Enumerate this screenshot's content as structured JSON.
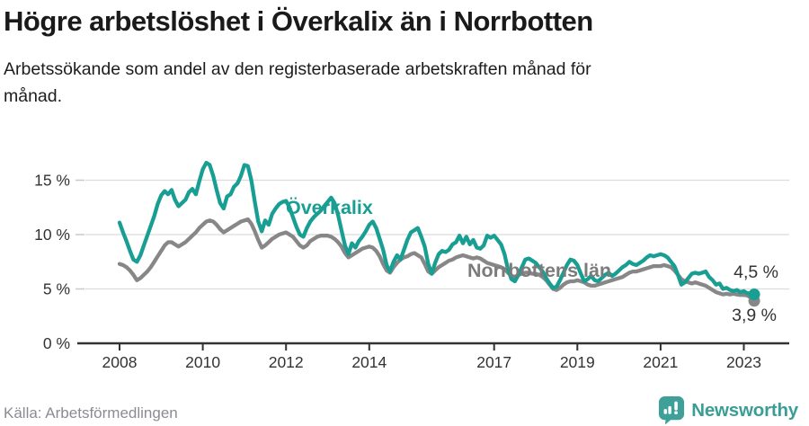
{
  "header": {
    "title": "Högre arbetslöshet i Överkalix än i Norrbotten",
    "subtitle": "Arbetssökande som andel av den registerbaserade arbetskraften månad för månad.",
    "subtitle_lines": [
      "Arbetssökande som andel av den registerbaserade arbetskraften månad för",
      "månad."
    ]
  },
  "footer": {
    "source": "Källa: Arbetsförmedlingen",
    "brand": "Newsworthy"
  },
  "colors": {
    "overkalix": "#199e93",
    "norrbotten": "#878787",
    "norrbotten_label": "#7b7b7b",
    "axis": "#333333",
    "grid": "#dcdcdc",
    "tick_minor": "#c9c9c9",
    "brand_teal": "#3fa099",
    "annotation": "#333333"
  },
  "chart_data": {
    "type": "line",
    "title": "Högre arbetslöshet i Överkalix än i Norrbotten",
    "xlabel": "",
    "ylabel": "Arbetssökande som andel av den registerbaserade arbetskraften",
    "x_start_year": 2008,
    "x_step_months": 1,
    "x_end": "2023-04",
    "x_ticks": [
      2008,
      2010,
      2012,
      2014,
      2017,
      2019,
      2021,
      2023
    ],
    "y_ticks": [
      {
        "value": 0,
        "label": "0 %"
      },
      {
        "value": 5,
        "label": "5 %"
      },
      {
        "value": 10,
        "label": "10 %"
      },
      {
        "value": 15,
        "label": "15 %"
      }
    ],
    "ylim": [
      0,
      17.5
    ],
    "grid": true,
    "legend_position": "inline-labels",
    "series": [
      {
        "name": "Norrbottens län",
        "color": "#878787",
        "end_label": "3,9 %",
        "end_value": 3.9,
        "values": [
          7.3,
          7.2,
          7.0,
          6.7,
          6.3,
          5.8,
          6.0,
          6.3,
          6.6,
          7.0,
          7.5,
          8.0,
          8.5,
          9.0,
          9.3,
          9.3,
          9.1,
          8.9,
          9.1,
          9.3,
          9.6,
          9.9,
          10.2,
          10.6,
          10.9,
          11.2,
          11.3,
          11.2,
          10.9,
          10.5,
          10.2,
          10.4,
          10.6,
          10.8,
          11.0,
          11.2,
          11.3,
          11.4,
          11.0,
          10.3,
          9.5,
          8.8,
          9.0,
          9.3,
          9.6,
          9.8,
          10.0,
          10.1,
          10.2,
          10.0,
          9.8,
          9.4,
          9.0,
          8.8,
          9.0,
          9.4,
          9.6,
          9.8,
          9.9,
          9.9,
          9.9,
          9.8,
          9.6,
          9.3,
          8.9,
          8.3,
          7.9,
          8.1,
          8.3,
          8.5,
          8.7,
          8.8,
          8.9,
          8.8,
          8.5,
          8.0,
          7.3,
          6.7,
          6.5,
          7.0,
          7.4,
          7.7,
          7.9,
          8.0,
          8.2,
          8.3,
          8.1,
          7.9,
          7.3,
          6.6,
          6.4,
          6.7,
          7.0,
          7.2,
          7.4,
          7.6,
          7.7,
          7.9,
          8.0,
          8.1,
          8.0,
          7.9,
          7.8,
          7.9,
          7.8,
          7.6,
          7.4,
          7.3,
          7.2,
          7.1,
          7.0,
          6.8,
          6.5,
          6.2,
          6.1,
          6.3,
          6.4,
          6.5,
          6.5,
          6.4,
          6.4,
          6.3,
          6.1,
          5.8,
          5.4,
          5.0,
          4.9,
          5.1,
          5.4,
          5.6,
          5.7,
          5.7,
          5.8,
          5.7,
          5.6,
          5.4,
          5.3,
          5.3,
          5.4,
          5.5,
          5.6,
          5.7,
          5.8,
          5.9,
          6.0,
          6.1,
          6.3,
          6.5,
          6.6,
          6.6,
          6.7,
          6.8,
          6.9,
          7.0,
          7.1,
          7.1,
          7.1,
          7.2,
          7.1,
          7.0,
          6.7,
          6.3,
          5.9,
          5.7,
          5.6,
          5.5,
          5.6,
          5.5,
          5.4,
          5.3,
          5.1,
          4.9,
          4.7,
          4.6,
          4.5,
          4.55,
          4.5,
          4.55,
          4.5,
          4.45,
          4.45,
          4.4,
          4.2,
          3.9
        ]
      },
      {
        "name": "Överkalix",
        "color": "#199e93",
        "end_label": "4,5 %",
        "end_value": 4.5,
        "values": [
          11.1,
          10.2,
          9.4,
          8.5,
          7.7,
          7.5,
          8.1,
          9.0,
          9.9,
          10.8,
          11.7,
          12.8,
          13.6,
          14.0,
          13.7,
          14.1,
          13.2,
          12.6,
          12.9,
          13.2,
          13.9,
          14.2,
          13.7,
          14.9,
          16.0,
          16.6,
          16.4,
          15.4,
          14.1,
          12.9,
          12.4,
          13.5,
          13.7,
          14.4,
          14.7,
          15.4,
          16.4,
          16.3,
          15.0,
          13.0,
          11.2,
          10.3,
          11.3,
          10.9,
          11.9,
          12.4,
          12.8,
          13.0,
          13.1,
          12.5,
          11.6,
          10.7,
          10.0,
          9.8,
          10.6,
          11.2,
          11.6,
          11.9,
          12.2,
          12.6,
          13.0,
          13.4,
          12.9,
          11.8,
          10.4,
          9.0,
          8.2,
          9.2,
          8.8,
          9.4,
          9.8,
          10.3,
          10.9,
          11.2,
          10.6,
          9.6,
          8.6,
          7.2,
          6.6,
          7.5,
          8.1,
          7.7,
          8.6,
          9.5,
          10.2,
          10.4,
          10.6,
          9.8,
          8.9,
          7.3,
          6.4,
          7.4,
          8.2,
          8.5,
          8.4,
          8.6,
          9.1,
          9.3,
          9.9,
          9.2,
          9.8,
          9.1,
          9.5,
          8.8,
          8.7,
          9.0,
          9.9,
          9.7,
          9.9,
          9.5,
          9.1,
          8.2,
          6.8,
          5.9,
          5.7,
          6.3,
          7.0,
          7.7,
          7.8,
          7.6,
          7.4,
          7.0,
          6.6,
          6.0,
          5.5,
          5.1,
          5.2,
          5.8,
          6.5,
          7.2,
          7.7,
          7.6,
          7.2,
          6.4,
          5.7,
          5.9,
          6.2,
          5.8,
          5.7,
          6.0,
          6.3,
          6.5,
          6.2,
          6.4,
          6.7,
          7.0,
          7.2,
          7.5,
          7.3,
          7.2,
          7.4,
          7.6,
          7.9,
          8.1,
          8.0,
          8.1,
          8.2,
          8.1,
          7.9,
          7.5,
          7.1,
          6.3,
          5.4,
          5.6,
          6.0,
          6.4,
          6.5,
          6.4,
          6.5,
          6.6,
          6.1,
          5.8,
          5.4,
          5.5,
          5.0,
          5.1,
          4.9,
          4.8,
          4.9,
          4.7,
          4.8,
          4.6,
          4.6,
          4.5
        ]
      }
    ]
  }
}
